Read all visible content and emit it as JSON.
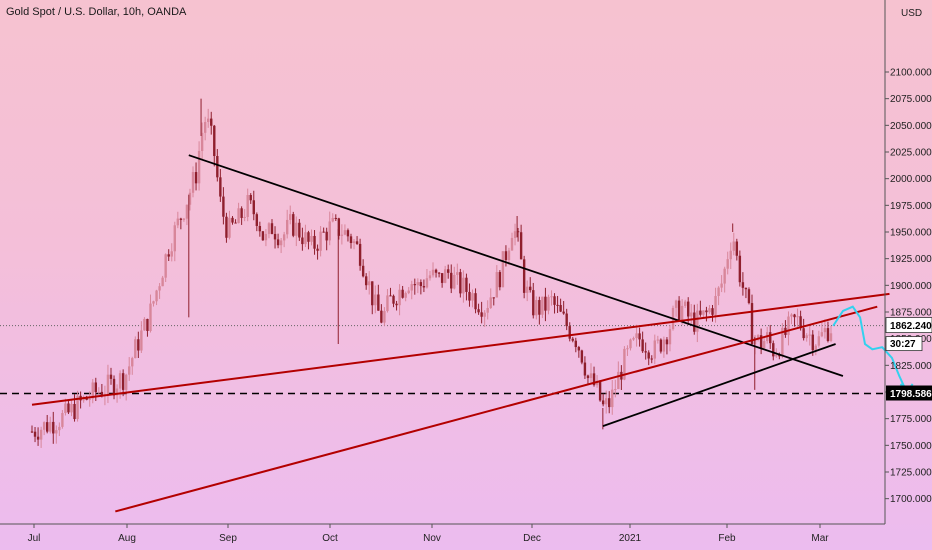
{
  "header": {
    "title": "Gold Spot / U.S. Dollar, 10h, OANDA",
    "currency": "USD"
  },
  "chart_data": {
    "type": "candlestick",
    "ylim": [
      1680,
      2130
    ],
    "y_ticks": [
      1700,
      1725,
      1750,
      1775,
      1800,
      1825,
      1850,
      1875,
      1900,
      1925,
      1950,
      1975,
      2000,
      2025,
      2050,
      2075,
      2100
    ],
    "y_tick_labels": [
      "1700.000",
      "1725.000",
      "1750.000",
      "1775.000",
      "1800.000",
      "1825.000",
      "1850.000",
      "1875.000",
      "1900.000",
      "1925.000",
      "1950.000",
      "1975.000",
      "2000.000",
      "2025.000",
      "2050.000",
      "2075.000",
      "2100.000"
    ],
    "x_labels": [
      "Jul",
      "Aug",
      "Sep",
      "Oct",
      "Nov",
      "Dec",
      "2021",
      "Feb",
      "Mar"
    ],
    "current_price": "1862.240",
    "countdown": "30:27",
    "support_level": "1798.586",
    "support_value": 1798.586,
    "current_value": 1862.24,
    "price_path": [
      [
        0.0,
        1763
      ],
      [
        0.35,
        1770
      ],
      [
        0.7,
        1778
      ],
      [
        1.0,
        1790
      ],
      [
        1.3,
        1800
      ],
      [
        1.6,
        1806
      ],
      [
        1.9,
        1815
      ],
      [
        2.15,
        1845
      ],
      [
        2.4,
        1872
      ],
      [
        2.6,
        1905
      ],
      [
        2.8,
        1938
      ],
      [
        3.0,
        1960
      ],
      [
        3.2,
        1985
      ],
      [
        3.35,
        2005
      ],
      [
        3.45,
        2040
      ],
      [
        3.55,
        2058
      ],
      [
        3.7,
        2030
      ],
      [
        3.85,
        1975
      ],
      [
        4.0,
        1950
      ],
      [
        4.2,
        1960
      ],
      [
        4.4,
        1975
      ],
      [
        4.6,
        1965
      ],
      [
        4.75,
        1940
      ],
      [
        4.9,
        1955
      ],
      [
        5.1,
        1945
      ],
      [
        5.3,
        1958
      ],
      [
        5.5,
        1948
      ],
      [
        5.7,
        1935
      ],
      [
        5.9,
        1945
      ],
      [
        6.1,
        1955
      ],
      [
        6.3,
        1952
      ],
      [
        6.5,
        1945
      ],
      [
        6.7,
        1930
      ],
      [
        6.85,
        1905
      ],
      [
        7.0,
        1880
      ],
      [
        7.15,
        1868
      ],
      [
        7.3,
        1885
      ],
      [
        7.5,
        1895
      ],
      [
        7.7,
        1905
      ],
      [
        7.9,
        1898
      ],
      [
        8.1,
        1910
      ],
      [
        8.3,
        1905
      ],
      [
        8.5,
        1912
      ],
      [
        8.7,
        1900
      ],
      [
        8.9,
        1895
      ],
      [
        9.1,
        1885
      ],
      [
        9.25,
        1880
      ],
      [
        9.4,
        1895
      ],
      [
        9.55,
        1910
      ],
      [
        9.7,
        1935
      ],
      [
        9.8,
        1955
      ],
      [
        9.9,
        1945
      ],
      [
        10.05,
        1900
      ],
      [
        10.2,
        1880
      ],
      [
        10.4,
        1878
      ],
      [
        10.6,
        1885
      ],
      [
        10.8,
        1870
      ],
      [
        10.95,
        1860
      ],
      [
        11.1,
        1850
      ],
      [
        11.25,
        1832
      ],
      [
        11.35,
        1812
      ],
      [
        11.5,
        1805
      ],
      [
        11.65,
        1785
      ],
      [
        11.8,
        1790
      ],
      [
        11.95,
        1812
      ],
      [
        12.1,
        1830
      ],
      [
        12.25,
        1842
      ],
      [
        12.4,
        1850
      ],
      [
        12.55,
        1845
      ],
      [
        12.7,
        1838
      ],
      [
        12.85,
        1848
      ],
      [
        13.0,
        1860
      ],
      [
        13.1,
        1872
      ],
      [
        13.25,
        1880
      ],
      [
        13.4,
        1870
      ],
      [
        13.55,
        1865
      ],
      [
        13.75,
        1872
      ],
      [
        13.95,
        1885
      ],
      [
        14.1,
        1905
      ],
      [
        14.2,
        1930
      ],
      [
        14.3,
        1950
      ],
      [
        14.4,
        1920
      ],
      [
        14.5,
        1900
      ],
      [
        14.6,
        1880
      ],
      [
        14.7,
        1855
      ],
      [
        14.85,
        1845
      ],
      [
        15.0,
        1850
      ],
      [
        15.15,
        1838
      ],
      [
        15.3,
        1848
      ],
      [
        15.45,
        1860
      ],
      [
        15.6,
        1868
      ],
      [
        15.75,
        1860
      ],
      [
        15.9,
        1852
      ],
      [
        16.05,
        1848
      ],
      [
        16.2,
        1858
      ],
      [
        16.35,
        1862
      ]
    ],
    "spikes": [
      [
        3.2,
        1870
      ],
      [
        3.45,
        2075
      ],
      [
        9.9,
        1965
      ],
      [
        14.3,
        1958
      ],
      [
        14.75,
        1802
      ],
      [
        11.65,
        1765
      ],
      [
        6.25,
        1845
      ]
    ],
    "lines": [
      {
        "color": "#000000",
        "width": 1.8,
        "style": "solid",
        "from": [
          3.2,
          2022
        ],
        "to": [
          16.55,
          1815
        ]
      },
      {
        "color": "#000000",
        "width": 1.8,
        "style": "solid",
        "from": [
          11.65,
          1768
        ],
        "to": [
          16.4,
          1845
        ]
      },
      {
        "color": "#b30000",
        "width": 2.0,
        "style": "solid",
        "from": [
          0.0,
          1788
        ],
        "to": [
          17.5,
          1892
        ]
      },
      {
        "color": "#b30000",
        "width": 2.0,
        "style": "solid",
        "from": [
          1.7,
          1688
        ],
        "to": [
          17.25,
          1880
        ]
      }
    ],
    "projection": [
      [
        16.35,
        1862
      ],
      [
        16.55,
        1876
      ],
      [
        16.75,
        1880
      ],
      [
        16.9,
        1870
      ],
      [
        17.0,
        1845
      ],
      [
        17.15,
        1840
      ],
      [
        17.35,
        1842
      ],
      [
        17.55,
        1832
      ],
      [
        17.7,
        1815
      ],
      [
        17.85,
        1800
      ]
    ]
  }
}
